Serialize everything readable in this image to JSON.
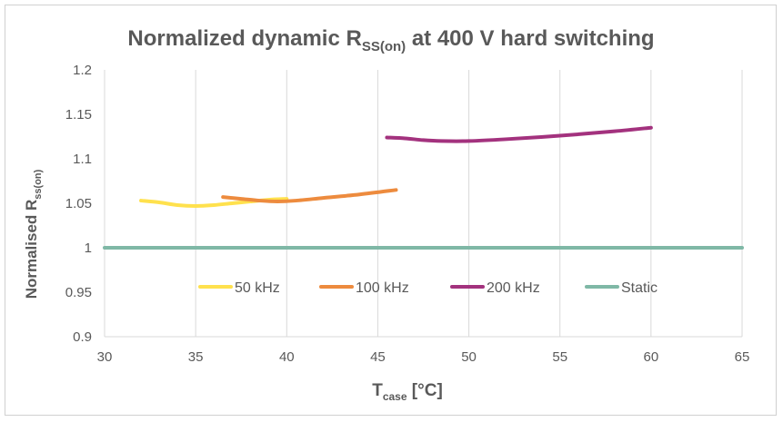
{
  "chart_data": {
    "type": "line",
    "title": {
      "main": "Normalized dynamic R",
      "sub": "SS(on)",
      "tail": " at 400 V hard switching"
    },
    "xlabel": {
      "main": "T",
      "sub": "case",
      "tail": " [°C]"
    },
    "ylabel": {
      "main": "Normalised R",
      "sub": "ss(on)"
    },
    "xlim": [
      30,
      65
    ],
    "ylim": [
      0.9,
      1.2
    ],
    "x_ticks": [
      "30",
      "35",
      "40",
      "45",
      "50",
      "55",
      "60",
      "65"
    ],
    "y_ticks": [
      "0.9",
      "0.95",
      "1",
      "1.05",
      "1.1",
      "1.15",
      "1.2"
    ],
    "grid": "vertical",
    "legend_position": "inside-bottom",
    "series": [
      {
        "name": "50 kHz",
        "color": "#ffe14d",
        "points": [
          [
            32,
            1.053
          ],
          [
            33,
            1.051
          ],
          [
            34,
            1.048
          ],
          [
            35,
            1.047
          ],
          [
            36,
            1.048
          ],
          [
            37,
            1.05
          ],
          [
            38,
            1.052
          ],
          [
            39,
            1.054
          ],
          [
            40,
            1.055
          ]
        ]
      },
      {
        "name": "100 kHz",
        "color": "#ed8b3e",
        "points": [
          [
            36.5,
            1.057
          ],
          [
            37.5,
            1.055
          ],
          [
            38.5,
            1.053
          ],
          [
            39.5,
            1.052
          ],
          [
            40.5,
            1.053
          ],
          [
            42,
            1.056
          ],
          [
            44,
            1.06
          ],
          [
            46,
            1.065
          ]
        ]
      },
      {
        "name": "200 kHz",
        "color": "#a3327e",
        "points": [
          [
            45.5,
            1.124
          ],
          [
            46.5,
            1.123
          ],
          [
            47.5,
            1.121
          ],
          [
            48.5,
            1.12
          ],
          [
            50,
            1.12
          ],
          [
            52,
            1.122
          ],
          [
            55,
            1.126
          ],
          [
            58,
            1.131
          ],
          [
            60,
            1.135
          ]
        ]
      },
      {
        "name": "Static",
        "color": "#7fb8a6",
        "points": [
          [
            30,
            1.0
          ],
          [
            65,
            1.0
          ]
        ]
      }
    ]
  }
}
